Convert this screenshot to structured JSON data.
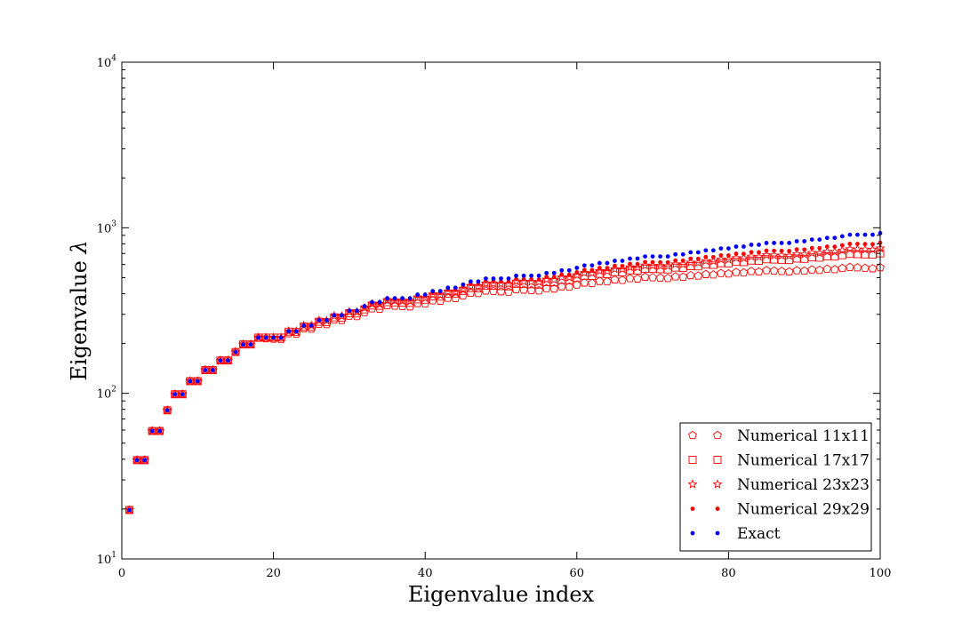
{
  "chart_data": {
    "type": "scatter",
    "title": "",
    "xlabel": "Eigenvalue index",
    "ylabel_text": "Eigenvalue ",
    "ylabel_symbol": "λ",
    "xlim": [
      0,
      100
    ],
    "ylim": [
      10,
      10000
    ],
    "yscale": "log",
    "xticks": [
      "0",
      "20",
      "40",
      "60",
      "80",
      "100"
    ],
    "ytick_values": [
      10,
      100,
      1000,
      10000
    ],
    "ytick_bases": [
      "10",
      "10",
      "10",
      "10"
    ],
    "ytick_exponents": [
      "1",
      "2",
      "3",
      "4"
    ],
    "grid": false,
    "legend_position": "lower-right",
    "colors": {
      "red": "#ff0000",
      "blue": "#0000ff"
    },
    "exact_density": [
      1,
      2,
      2,
      1,
      2,
      2,
      2,
      2,
      1,
      2,
      4,
      2,
      2,
      2,
      2,
      2,
      1,
      2,
      4,
      2,
      2,
      2,
      1,
      2,
      4,
      4,
      2,
      2,
      1,
      2,
      2,
      2,
      2,
      4,
      2,
      2,
      2,
      2,
      2,
      2,
      4,
      2,
      2,
      2,
      1,
      4,
      2,
      2,
      4,
      2
    ],
    "series": [
      {
        "name": "Numerical 11x11",
        "marker": "pentagon-open",
        "fraction": 0.62,
        "start": 16
      },
      {
        "name": "Numerical 17x17",
        "marker": "square-open",
        "fraction": 0.755,
        "start": 20
      },
      {
        "name": "Numerical 23x23",
        "marker": "star-open",
        "fraction": 0.81,
        "start": 24
      },
      {
        "name": "Numerical 29x29",
        "marker": "dot-red",
        "fraction": 0.875,
        "start": 28
      },
      {
        "name": "Exact",
        "marker": "dot-blue",
        "fraction": 1.0,
        "start": 0
      }
    ]
  }
}
